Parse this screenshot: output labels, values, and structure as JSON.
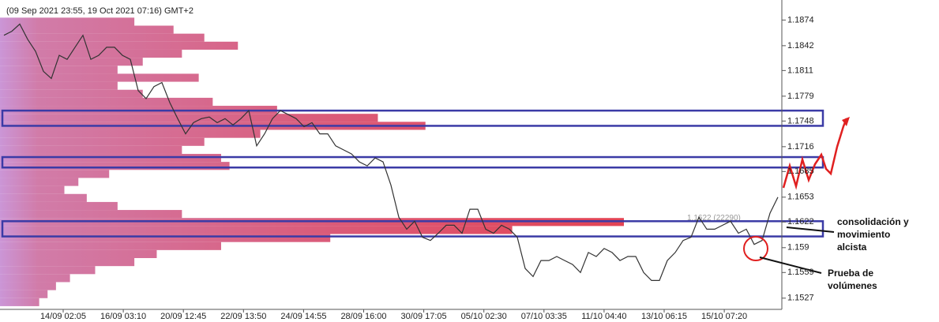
{
  "chart_data": {
    "type": "line",
    "title": "(09 Sep 2021 23:55, 19 Oct 2021 07:16) GMT+2",
    "xtick_labels": [
      "14/09 02:05",
      "16/09 03:10",
      "20/09 12:45",
      "22/09 13:50",
      "24/09 14:55",
      "28/09 16:00",
      "30/09 17:05",
      "05/10 02:30",
      "07/10 03:35",
      "11/10 04:40",
      "13/10 06:15",
      "15/10 07:20"
    ],
    "ylim": [
      1.1513,
      1.1899
    ],
    "yticks": [
      1.1874,
      1.1842,
      1.1811,
      1.1779,
      1.1748,
      1.1716,
      1.1685,
      1.1653,
      1.1622,
      1.159,
      1.1559,
      1.1527
    ],
    "series": [
      {
        "color": "#333333",
        "values": [
          1.1855,
          1.186,
          1.1869,
          1.185,
          1.1835,
          1.181,
          1.1801,
          1.183,
          1.1825,
          1.184,
          1.1855,
          1.1825,
          1.183,
          1.184,
          1.184,
          1.183,
          1.1825,
          1.1786,
          1.1776,
          1.1791,
          1.1796,
          1.1771,
          1.1751,
          1.1732,
          1.1746,
          1.1751,
          1.1753,
          1.1746,
          1.1751,
          1.1743,
          1.1751,
          1.1761,
          1.1717,
          1.1732,
          1.1751,
          1.1761,
          1.1756,
          1.1751,
          1.1741,
          1.1746,
          1.1732,
          1.1732,
          1.1717,
          1.1712,
          1.1707,
          1.1697,
          1.1692,
          1.1702,
          1.1697,
          1.1668,
          1.1628,
          1.1613,
          1.1623,
          1.1603,
          1.1599,
          1.1608,
          1.1618,
          1.1618,
          1.1608,
          1.1638,
          1.1638,
          1.1613,
          1.1608,
          1.1618,
          1.1613,
          1.1603,
          1.1564,
          1.1554,
          1.1574,
          1.1574,
          1.1579,
          1.1574,
          1.1569,
          1.1559,
          1.1584,
          1.1579,
          1.1589,
          1.1584,
          1.1574,
          1.1579,
          1.1579,
          1.1559,
          1.1549,
          1.1549,
          1.1574,
          1.1584,
          1.1599,
          1.1603,
          1.1628,
          1.1613,
          1.1613,
          1.1618,
          1.1623,
          1.1608,
          1.1613,
          1.1594,
          1.1599,
          1.1633,
          1.1653
        ]
      }
    ],
    "volume_profile": {
      "prices": [
        1.1872,
        1.1862,
        1.1852,
        1.1842,
        1.1832,
        1.1822,
        1.1812,
        1.1802,
        1.1792,
        1.1782,
        1.1772,
        1.1762,
        1.1752,
        1.1742,
        1.1732,
        1.1722,
        1.1712,
        1.1702,
        1.1692,
        1.1682,
        1.1672,
        1.1662,
        1.1652,
        1.1642,
        1.1632,
        1.1622,
        1.1612,
        1.1602,
        1.1592,
        1.1582,
        1.1572,
        1.1562,
        1.1552,
        1.1542,
        1.1532,
        1.1522
      ],
      "volumes": [
        4800,
        6200,
        7300,
        8500,
        6500,
        5100,
        4200,
        7100,
        4200,
        5100,
        7600,
        9900,
        13500,
        15200,
        9300,
        7300,
        6500,
        7900,
        8200,
        3900,
        2800,
        2300,
        3100,
        4200,
        6500,
        22290,
        18300,
        11800,
        7900,
        5600,
        4800,
        3400,
        2500,
        2000,
        1700,
        1400
      ]
    },
    "poc_label": "1.1622 (22290)",
    "zones": [
      [
        1.1761,
        1.1742
      ],
      [
        1.1703,
        1.169
      ],
      [
        1.1623,
        1.1604
      ]
    ],
    "annotations": [
      {
        "lines": [
          "consolidación y",
          "movimiento",
          "alcista"
        ]
      },
      {
        "lines": [
          "Prueba de",
          "volúmenes"
        ]
      }
    ]
  }
}
